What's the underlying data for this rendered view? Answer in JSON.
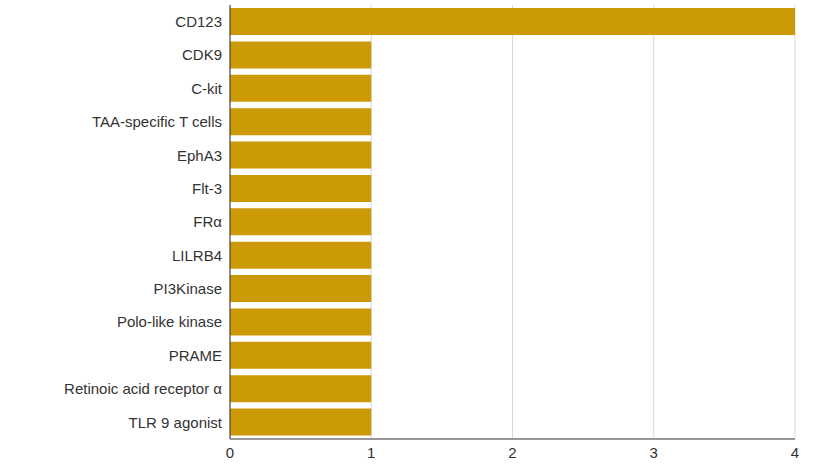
{
  "chart_data": {
    "type": "bar",
    "orientation": "horizontal",
    "categories": [
      "CD123",
      "CDK9",
      "C-kit",
      "TAA-specific T cells",
      "EphA3",
      "Flt-3",
      "FRα",
      "LILRB4",
      "PI3Kinase",
      "Polo-like kinase",
      "PRAME",
      "Retinoic acid receptor α",
      "TLR 9 agonist"
    ],
    "values": [
      4,
      1,
      1,
      1,
      1,
      1,
      1,
      1,
      1,
      1,
      1,
      1,
      1
    ],
    "color": "#cc9a06",
    "xlim": [
      0,
      4
    ],
    "xticks": [
      0,
      1,
      2,
      3,
      4
    ],
    "grid": true
  }
}
